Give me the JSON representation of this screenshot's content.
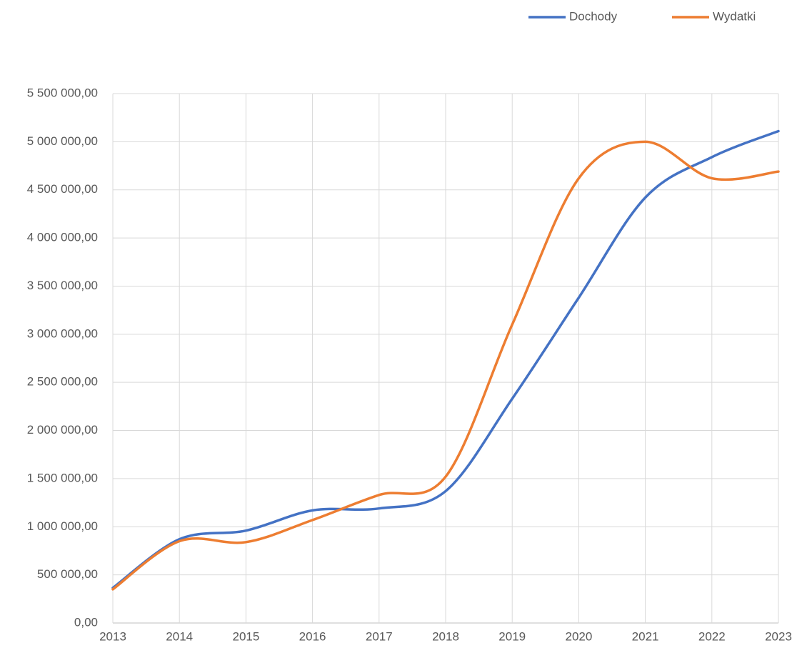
{
  "chart_data": {
    "type": "line",
    "categories": [
      "2013",
      "2014",
      "2015",
      "2016",
      "2017",
      "2018",
      "2019",
      "2020",
      "2021",
      "2022",
      "2023"
    ],
    "series": [
      {
        "name": "Dochody",
        "color": "#4472c4",
        "values": [
          365000,
          870000,
          960000,
          1170000,
          1190000,
          1370000,
          2330000,
          3380000,
          4420000,
          4840000,
          5110000
        ]
      },
      {
        "name": "Wydatki",
        "color": "#ed7d31",
        "values": [
          350000,
          850000,
          840000,
          1070000,
          1330000,
          1520000,
          3100000,
          4620000,
          5000000,
          4620000,
          4690000
        ]
      }
    ],
    "ylim": [
      0,
      5500000
    ],
    "yticks": [
      {
        "value": 0,
        "label": "0,00"
      },
      {
        "value": 500000,
        "label": "500 000,00"
      },
      {
        "value": 1000000,
        "label": "1 000 000,00"
      },
      {
        "value": 1500000,
        "label": "1 500 000,00"
      },
      {
        "value": 2000000,
        "label": "2 000 000,00"
      },
      {
        "value": 2500000,
        "label": "2 500 000,00"
      },
      {
        "value": 3000000,
        "label": "3 000 000,00"
      },
      {
        "value": 3500000,
        "label": "3 500 000,00"
      },
      {
        "value": 4000000,
        "label": "4 000 000,00"
      },
      {
        "value": 4500000,
        "label": "4 500 000,00"
      },
      {
        "value": 5000000,
        "label": "5 000 000,00"
      },
      {
        "value": 5500000,
        "label": "5 500 000,00"
      }
    ],
    "grid": true,
    "smooth": true,
    "legend": "top-right"
  }
}
